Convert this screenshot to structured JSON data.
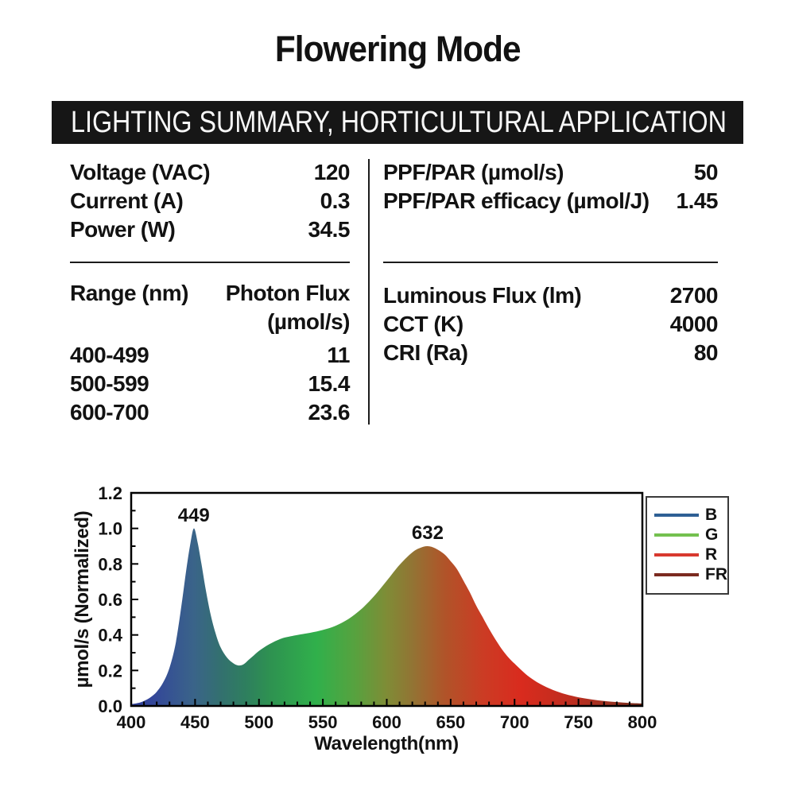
{
  "page": {
    "title": "Flowering Mode",
    "banner": "LIGHTING SUMMARY, HORTICULTURAL APPLICATION"
  },
  "specs": {
    "electrical": [
      {
        "label": "Voltage (VAC)",
        "value": "120"
      },
      {
        "label": "Current (A)",
        "value": "0.3"
      },
      {
        "label": "Power (W)",
        "value": "34.5"
      }
    ],
    "ppf": [
      {
        "label": "PPF/PAR (µmol/s)",
        "value": "50"
      },
      {
        "label": "PPF/PAR efficacy (µmol/J)",
        "value": "1.45"
      }
    ],
    "flux_table": {
      "col1_header": "Range (nm)",
      "col2_header_line1": "Photon Flux",
      "col2_header_line2": "(µmol/s)",
      "rows": [
        {
          "range": "400-499",
          "value": "11"
        },
        {
          "range": "500-599",
          "value": "15.4"
        },
        {
          "range": "600-700",
          "value": "23.6"
        }
      ]
    },
    "photometric": [
      {
        "label": "Luminous Flux (lm)",
        "value": "2700"
      },
      {
        "label": "CCT (K)",
        "value": "4000"
      },
      {
        "label": "CRI (Ra)",
        "value": "80"
      }
    ]
  },
  "chart_data": {
    "type": "area",
    "xlabel": "Wavelength(nm)",
    "ylabel": "µmol/s (Normalized)",
    "xlim": [
      400,
      800
    ],
    "ylim": [
      0,
      1.2
    ],
    "x_major_ticks": [
      400,
      450,
      500,
      550,
      600,
      650,
      700,
      750,
      800
    ],
    "x_minor_step": 10,
    "y_major_ticks": [
      {
        "v": 0.0,
        "label": "0.0"
      },
      {
        "v": 0.2,
        "label": "0.2"
      },
      {
        "v": 0.4,
        "label": "0.4"
      },
      {
        "v": 0.6,
        "label": "0.6"
      },
      {
        "v": 0.8,
        "label": "0.8"
      },
      {
        "v": 1.0,
        "label": "1.0"
      },
      {
        "v": 1.2,
        "label": "1.2"
      }
    ],
    "y_minor_step": 0.1,
    "grid": false,
    "legend_position": "outside-top-right",
    "annotations": [
      {
        "text": "449",
        "x": 449,
        "y": 1.0
      },
      {
        "text": "632",
        "x": 632,
        "y": 0.9
      }
    ],
    "legend": [
      {
        "label": "B",
        "color": "#2e5f94"
      },
      {
        "label": "G",
        "color": "#74c04f"
      },
      {
        "label": "R",
        "color": "#d8392f"
      },
      {
        "label": "FR",
        "color": "#7b2a20"
      }
    ],
    "points": [
      [
        400,
        0.01
      ],
      [
        405,
        0.016
      ],
      [
        410,
        0.028
      ],
      [
        415,
        0.048
      ],
      [
        420,
        0.08
      ],
      [
        425,
        0.132
      ],
      [
        430,
        0.215
      ],
      [
        435,
        0.36
      ],
      [
        440,
        0.6
      ],
      [
        443,
        0.76
      ],
      [
        446,
        0.9
      ],
      [
        449,
        1.0
      ],
      [
        452,
        0.92
      ],
      [
        455,
        0.8
      ],
      [
        458,
        0.67
      ],
      [
        462,
        0.52
      ],
      [
        466,
        0.41
      ],
      [
        470,
        0.33
      ],
      [
        475,
        0.272
      ],
      [
        480,
        0.24
      ],
      [
        484,
        0.228
      ],
      [
        488,
        0.235
      ],
      [
        492,
        0.26
      ],
      [
        496,
        0.285
      ],
      [
        500,
        0.31
      ],
      [
        505,
        0.335
      ],
      [
        510,
        0.355
      ],
      [
        515,
        0.372
      ],
      [
        520,
        0.385
      ],
      [
        530,
        0.4
      ],
      [
        540,
        0.412
      ],
      [
        550,
        0.428
      ],
      [
        560,
        0.452
      ],
      [
        570,
        0.49
      ],
      [
        580,
        0.545
      ],
      [
        590,
        0.618
      ],
      [
        600,
        0.705
      ],
      [
        610,
        0.795
      ],
      [
        620,
        0.865
      ],
      [
        626,
        0.89
      ],
      [
        632,
        0.9
      ],
      [
        638,
        0.888
      ],
      [
        645,
        0.855
      ],
      [
        650,
        0.815
      ],
      [
        655,
        0.77
      ],
      [
        660,
        0.705
      ],
      [
        665,
        0.64
      ],
      [
        670,
        0.565
      ],
      [
        675,
        0.5
      ],
      [
        680,
        0.435
      ],
      [
        685,
        0.375
      ],
      [
        690,
        0.32
      ],
      [
        695,
        0.275
      ],
      [
        700,
        0.238
      ],
      [
        710,
        0.172
      ],
      [
        720,
        0.124
      ],
      [
        730,
        0.09
      ],
      [
        740,
        0.066
      ],
      [
        750,
        0.049
      ],
      [
        760,
        0.037
      ],
      [
        770,
        0.028
      ],
      [
        780,
        0.022
      ],
      [
        790,
        0.017
      ],
      [
        800,
        0.014
      ]
    ],
    "gradient_stops": [
      {
        "nm": 400,
        "color": "#2f3f96"
      },
      {
        "nm": 415,
        "color": "#33459a"
      },
      {
        "nm": 449,
        "color": "#3a6489"
      },
      {
        "nm": 470,
        "color": "#33706f"
      },
      {
        "nm": 490,
        "color": "#2e7f5e"
      },
      {
        "nm": 510,
        "color": "#2e9350"
      },
      {
        "nm": 545,
        "color": "#30b04b"
      },
      {
        "nm": 575,
        "color": "#57a23f"
      },
      {
        "nm": 600,
        "color": "#7f8c36"
      },
      {
        "nm": 620,
        "color": "#927434"
      },
      {
        "nm": 645,
        "color": "#b05429"
      },
      {
        "nm": 675,
        "color": "#cb3c24"
      },
      {
        "nm": 705,
        "color": "#d92b1e"
      },
      {
        "nm": 745,
        "color": "#bd2d1f"
      },
      {
        "nm": 775,
        "color": "#9c3322"
      },
      {
        "nm": 800,
        "color": "#702718"
      }
    ]
  }
}
